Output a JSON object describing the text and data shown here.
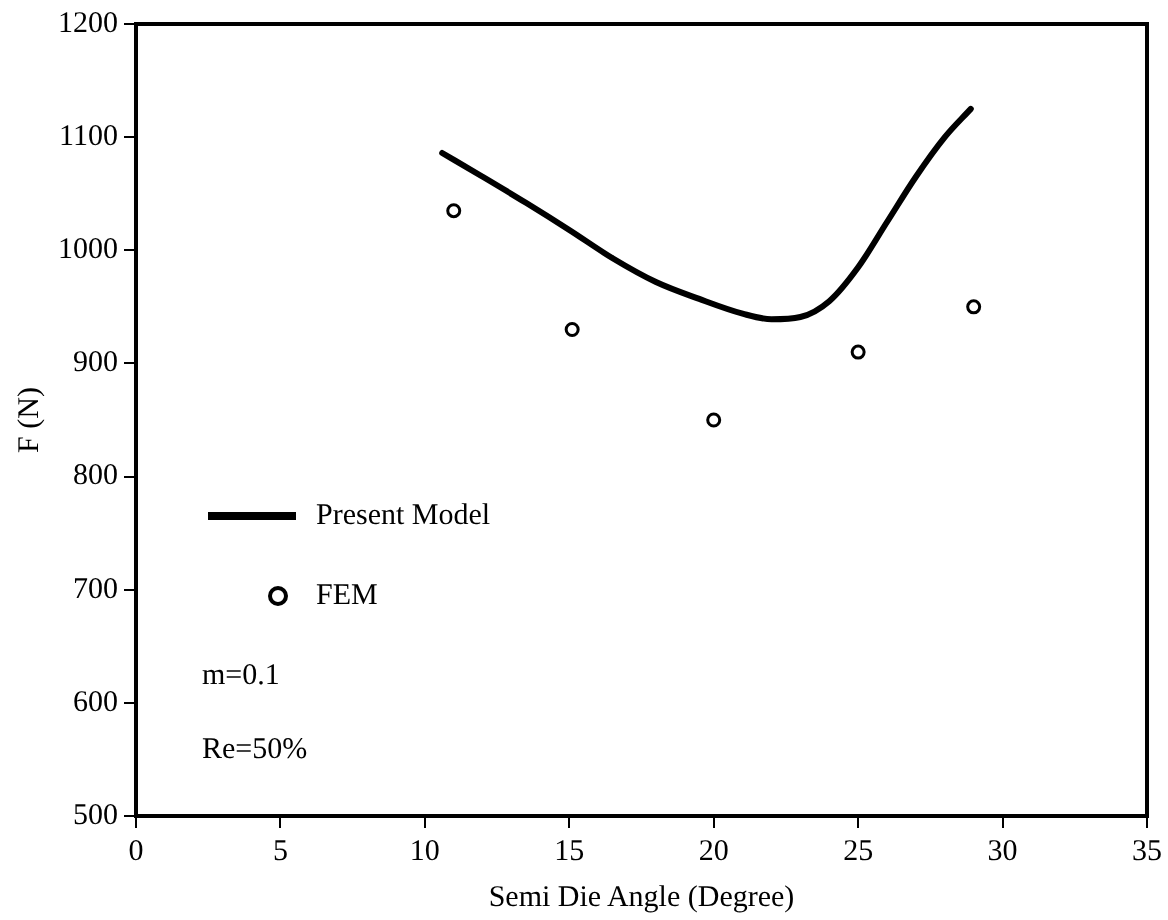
{
  "chart_data": {
    "type": "line",
    "xlabel": "Semi Die Angle (Degree)",
    "ylabel": "F (N)",
    "xlim": [
      0,
      35
    ],
    "xticks": [
      0,
      5,
      10,
      15,
      20,
      25,
      30,
      35
    ],
    "ylim": [
      500,
      1200
    ],
    "yticks": [
      500,
      600,
      700,
      800,
      900,
      1000,
      1100,
      1200
    ],
    "grid": false,
    "legend": "bottom left",
    "annotations": [
      "m=0.1",
      "Re=50%"
    ],
    "series": [
      {
        "name": "Present Model",
        "color": "#000000",
        "marker": "none",
        "x": [
          10.6,
          12,
          13.5,
          15,
          16.5,
          18,
          19.5,
          21,
          22,
          23,
          24,
          25,
          26,
          27,
          28,
          28.9
        ],
        "values": [
          1086,
          1065,
          1042,
          1018,
          993,
          972,
          957,
          944,
          939,
          941,
          955,
          985,
          1025,
          1065,
          1100,
          1125
        ]
      },
      {
        "name": "FEM",
        "type": "scatter",
        "color": "#000000",
        "marker": "circle",
        "x": [
          11,
          15.1,
          20,
          25,
          29
        ],
        "values": [
          1035,
          930,
          850,
          910,
          950
        ]
      }
    ]
  }
}
